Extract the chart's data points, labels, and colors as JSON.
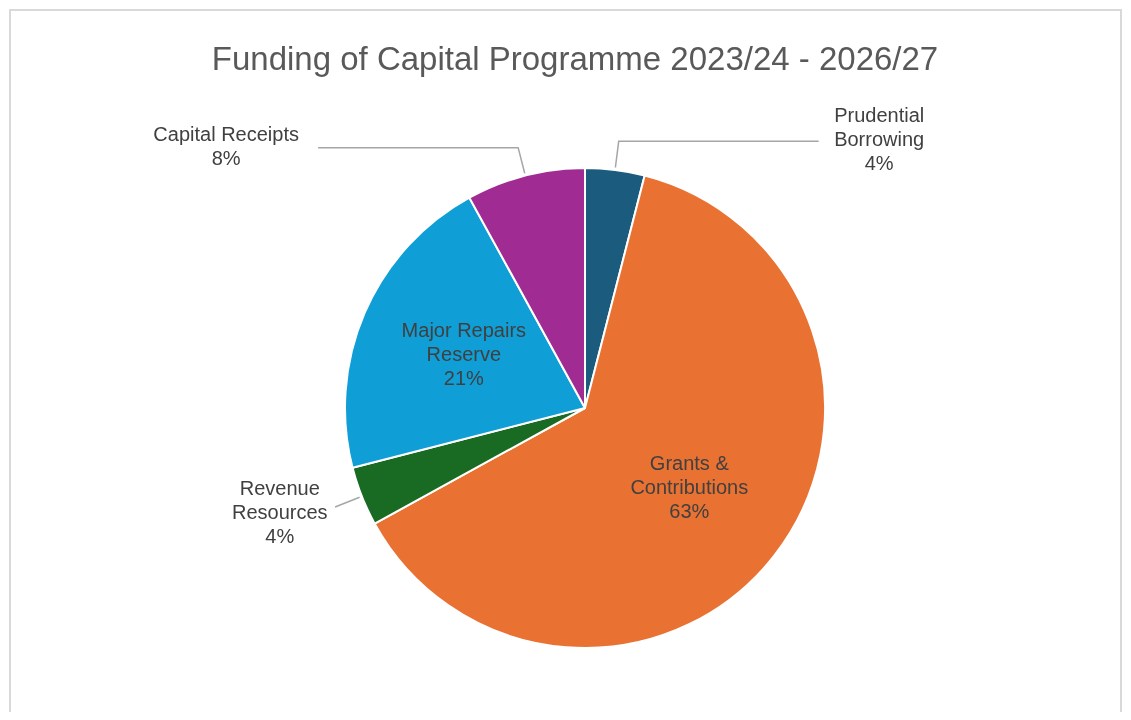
{
  "chart_data": {
    "type": "pie",
    "title": "Funding of Capital Programme 2023/24 - 2026/27",
    "categories": [
      "Prudential Borrowing",
      "Grants & Contributions",
      "Revenue Resources",
      "Major Repairs Reserve",
      "Capital Receipts"
    ],
    "values": [
      4,
      63,
      4,
      21,
      8
    ],
    "colors": [
      "#1a5b7e",
      "#e97132",
      "#196b24",
      "#0f9ed5",
      "#a02b93"
    ],
    "value_labels": [
      "4%",
      "63%",
      "4%",
      "21%",
      "8%"
    ]
  }
}
